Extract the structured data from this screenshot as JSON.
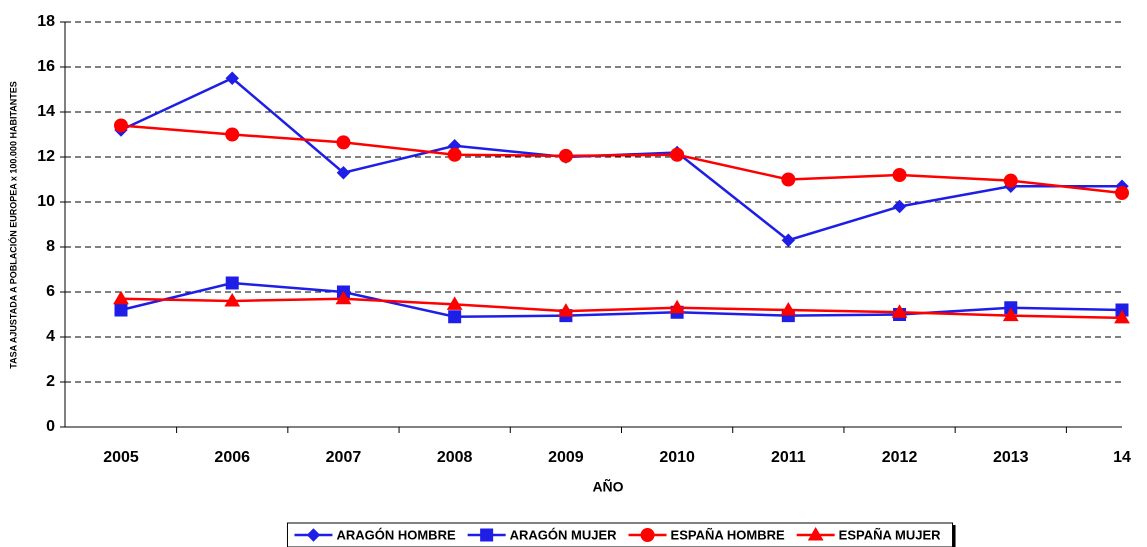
{
  "chart_data": {
    "type": "line",
    "x_label": "AÑO",
    "y_label": "TASA AJUSTADA A POBLACIÓN EUROPEA x 100.000 HABITANTES",
    "categories": [
      "2005",
      "2006",
      "2007",
      "2008",
      "2009",
      "2010",
      "2011",
      "2012",
      "2013",
      "14"
    ],
    "series": [
      {
        "name": "ARAGÓN HOMBRE",
        "color": "#1e1ee6",
        "marker": "diamond",
        "values": [
          13.2,
          15.5,
          11.3,
          12.5,
          12.0,
          12.2,
          8.3,
          9.8,
          10.7,
          10.7
        ]
      },
      {
        "name": "ARAGÓN MUJER",
        "color": "#1e1ee6",
        "marker": "square",
        "values": [
          5.2,
          6.4,
          6.0,
          4.9,
          4.95,
          5.1,
          4.95,
          5.0,
          5.3,
          5.2
        ]
      },
      {
        "name": "ESPAÑA HOMBRE",
        "color": "#ff0000",
        "marker": "circle",
        "values": [
          13.4,
          13.0,
          12.65,
          12.1,
          12.05,
          12.1,
          11.0,
          11.2,
          10.95,
          10.4
        ]
      },
      {
        "name": "ESPAÑA MUJER",
        "color": "#ff0000",
        "marker": "triangle",
        "values": [
          5.7,
          5.6,
          5.7,
          5.45,
          5.15,
          5.3,
          5.2,
          5.1,
          4.95,
          4.85
        ]
      }
    ],
    "ylim": [
      0,
      18
    ],
    "yticks": [
      0,
      2,
      4,
      6,
      8,
      10,
      12,
      14,
      16,
      18
    ],
    "grid": true,
    "legend": "bottom"
  }
}
